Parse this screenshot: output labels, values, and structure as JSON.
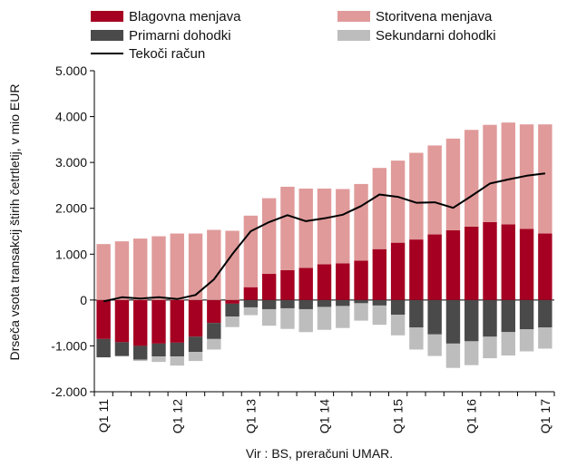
{
  "chart_data": {
    "type": "bar",
    "stacked": true,
    "ylabel": "Drseča vsota transakcij štirih četrtletij, v mio EUR",
    "source": "Vir : BS, preračuni UMAR.",
    "ylim": [
      -2000,
      5000
    ],
    "y_ticks": [
      -2000,
      -1000,
      0,
      1000,
      2000,
      3000,
      4000,
      5000
    ],
    "y_tick_labels": [
      "-2.000",
      "-1.000",
      "0",
      "1.000",
      "2.000",
      "3.000",
      "4.000",
      "5.000"
    ],
    "x_tick_labels": [
      "Q1 11",
      "Q1 12",
      "Q1 13",
      "Q1 14",
      "Q1 15",
      "Q1 16",
      "Q1 17"
    ],
    "x_tick_positions": [
      0,
      4,
      8,
      12,
      16,
      20,
      24
    ],
    "categories": [
      "Q1 11",
      "Q2 11",
      "Q3 11",
      "Q4 11",
      "Q1 12",
      "Q2 12",
      "Q3 12",
      "Q4 12",
      "Q1 13",
      "Q2 13",
      "Q3 13",
      "Q4 13",
      "Q1 14",
      "Q2 14",
      "Q3 14",
      "Q4 14",
      "Q1 15",
      "Q2 15",
      "Q3 15",
      "Q4 15",
      "Q1 16",
      "Q2 16",
      "Q3 16",
      "Q4 16",
      "Q1 17"
    ],
    "series": [
      {
        "name": "Blagovna menjava",
        "color": "#a50021",
        "values": [
          -850,
          -920,
          -1000,
          -950,
          -930,
          -800,
          -500,
          -80,
          280,
          570,
          650,
          700,
          780,
          800,
          860,
          1110,
          1250,
          1320,
          1430,
          1520,
          1600,
          1700,
          1650,
          1550,
          1450
        ]
      },
      {
        "name": "Storitvena menjava",
        "color": "#e09a9a",
        "values": [
          1220,
          1280,
          1340,
          1390,
          1450,
          1450,
          1530,
          1510,
          1560,
          1650,
          1820,
          1730,
          1650,
          1620,
          1670,
          1770,
          1790,
          1890,
          1940,
          2000,
          2110,
          2120,
          2220,
          2280,
          2380
        ]
      },
      {
        "name": "Primarni dohodki",
        "color": "#4a4a4a",
        "values": [
          -400,
          -300,
          -300,
          -280,
          -300,
          -330,
          -350,
          -280,
          -160,
          -200,
          -180,
          -200,
          -150,
          -130,
          -70,
          -120,
          -320,
          -600,
          -750,
          -950,
          -900,
          -800,
          -700,
          -640,
          -600
        ]
      },
      {
        "name": "Sekundarni dohodki",
        "color": "#bdbdbd",
        "values": [
          0,
          -10,
          -30,
          -120,
          -200,
          -200,
          -230,
          -230,
          -170,
          -360,
          -450,
          -500,
          -500,
          -480,
          -380,
          -420,
          -450,
          -480,
          -470,
          -530,
          -520,
          -470,
          -510,
          -480,
          -460
        ]
      }
    ],
    "line_series": {
      "name": "Tekoči račun",
      "color": "#000000",
      "values": [
        -30,
        60,
        30,
        60,
        20,
        110,
        450,
        1000,
        1500,
        1700,
        1850,
        1720,
        1780,
        1860,
        2050,
        2300,
        2250,
        2120,
        2130,
        2010,
        2270,
        2540,
        2630,
        2710,
        2760
      ]
    },
    "legend": [
      {
        "name": "Blagovna menjava",
        "color": "#a50021",
        "kind": "box"
      },
      {
        "name": "Storitvena menjava",
        "color": "#e09a9a",
        "kind": "box"
      },
      {
        "name": "Primarni dohodki",
        "color": "#4a4a4a",
        "kind": "box"
      },
      {
        "name": "Sekundarni dohodki",
        "color": "#bdbdbd",
        "kind": "box"
      },
      {
        "name": "Tekoči račun",
        "color": "#000000",
        "kind": "line"
      }
    ],
    "legend_placement": "top",
    "grid": false
  }
}
